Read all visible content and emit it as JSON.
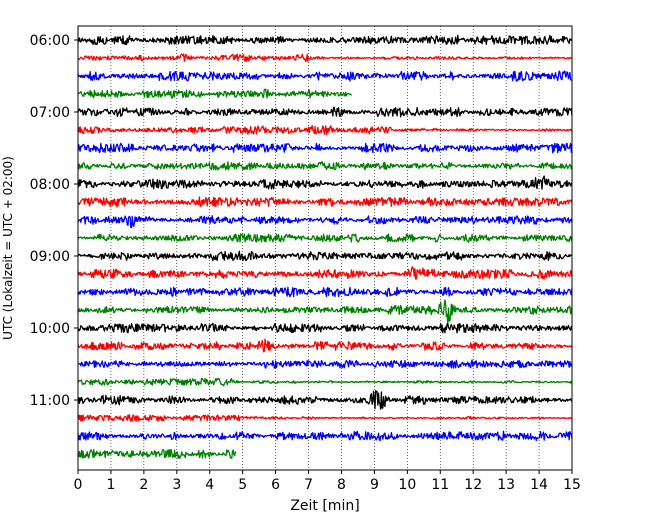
{
  "chart_data": {
    "type": "line",
    "subtype": "helicorder",
    "title": "",
    "xlabel": "Zeit  [min]",
    "ylabel": "UTC (Lokalzeit = UTC + 02:00)",
    "xlim": [
      0,
      15
    ],
    "x_ticks": [
      0,
      1,
      2,
      3,
      4,
      5,
      6,
      7,
      8,
      9,
      10,
      11,
      12,
      13,
      14,
      15
    ],
    "x_tick_labels": [
      "0",
      "1",
      "2",
      "3",
      "4",
      "5",
      "6",
      "7",
      "8",
      "9",
      "10",
      "11",
      "12",
      "13",
      "14",
      "15"
    ],
    "y_tick_labels": [
      "06:00",
      "07:00",
      "08:00",
      "09:00",
      "10:00",
      "11:00"
    ],
    "y_tick_trace_index": [
      0,
      4,
      8,
      12,
      16,
      20
    ],
    "trace_minutes": 15,
    "grid": "x-dotted",
    "color_cycle": [
      "#000000",
      "#ff0000",
      "#0000ff",
      "#008000"
    ],
    "traces": [
      {
        "start": "06:00",
        "end_min": 15,
        "amp": 0.55
      },
      {
        "start": "06:15",
        "end_min": 15,
        "amp": 0.5,
        "fade_after_min": 7
      },
      {
        "start": "06:30",
        "end_min": 15,
        "amp": 0.6
      },
      {
        "start": "06:45",
        "end_min": 8.3,
        "amp": 0.55
      },
      {
        "start": "07:00",
        "end_min": 15,
        "amp": 0.55
      },
      {
        "start": "07:15",
        "end_min": 15,
        "amp": 0.55,
        "fade_after_min": 9.5
      },
      {
        "start": "07:30",
        "end_min": 15,
        "amp": 0.55
      },
      {
        "start": "07:45",
        "end_min": 15,
        "amp": 0.5
      },
      {
        "start": "08:00",
        "end_min": 15,
        "amp": 0.55
      },
      {
        "start": "08:15",
        "end_min": 15,
        "amp": 0.55
      },
      {
        "start": "08:30",
        "end_min": 15,
        "amp": 0.5
      },
      {
        "start": "08:45",
        "end_min": 15,
        "amp": 0.5
      },
      {
        "start": "09:00",
        "end_min": 15,
        "amp": 0.55
      },
      {
        "start": "09:15",
        "end_min": 15,
        "amp": 0.55
      },
      {
        "start": "09:30",
        "end_min": 15,
        "amp": 0.55
      },
      {
        "start": "09:45",
        "end_min": 15,
        "amp": 0.5
      },
      {
        "start": "10:00",
        "end_min": 15,
        "amp": 0.55
      },
      {
        "start": "10:15",
        "end_min": 15,
        "amp": 0.5
      },
      {
        "start": "10:30",
        "end_min": 15,
        "amp": 0.5
      },
      {
        "start": "10:45",
        "end_min": 15,
        "amp": 0.45,
        "fade_after_min": 4.8
      },
      {
        "start": "11:00",
        "end_min": 15,
        "amp": 0.55
      },
      {
        "start": "11:15",
        "end_min": 15,
        "amp": 0.45,
        "fade_after_min": 5
      },
      {
        "start": "11:30",
        "end_min": 15,
        "amp": 0.55
      },
      {
        "start": "11:45",
        "end_min": 4.8,
        "amp": 0.55
      }
    ],
    "events": [
      {
        "trace": 8,
        "min": 14.1,
        "amp": 1.3
      },
      {
        "trace": 10,
        "min": 1.6,
        "amp": 1.2
      },
      {
        "trace": 13,
        "min": 10.2,
        "amp": 1.1
      },
      {
        "trace": 15,
        "min": 11.2,
        "amp": 1.9
      },
      {
        "trace": 17,
        "min": 5.7,
        "amp": 1.0
      },
      {
        "trace": 20,
        "min": 9.15,
        "amp": 1.7
      }
    ]
  }
}
